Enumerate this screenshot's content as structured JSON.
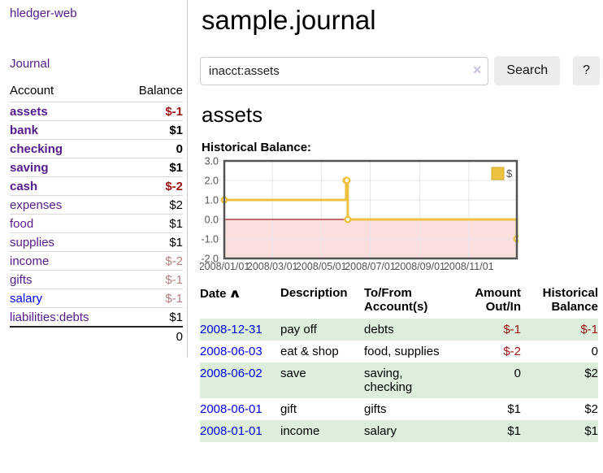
{
  "app": {
    "title": "hledger-web"
  },
  "sidebar": {
    "journal_link": "Journal",
    "accounts_table": {
      "header": {
        "account": "Account",
        "balance": "Balance"
      },
      "rows": [
        {
          "account": "assets",
          "balance": "$-1"
        },
        {
          "account": "bank",
          "balance": "$1"
        },
        {
          "account": "checking",
          "balance": "0"
        },
        {
          "account": "saving",
          "balance": "$1"
        },
        {
          "account": "cash",
          "balance": "$-2"
        },
        {
          "account": "expenses",
          "balance": "$2"
        },
        {
          "account": "food",
          "balance": "$1"
        },
        {
          "account": "supplies",
          "balance": "$1"
        },
        {
          "account": "income",
          "balance": "$-2"
        },
        {
          "account": "gifts",
          "balance": "$-1"
        },
        {
          "account": "salary",
          "balance": "$-1"
        },
        {
          "account": "liabilities:debts",
          "balance": "$1"
        }
      ],
      "total": "0"
    }
  },
  "main": {
    "page_title": "sample.journal",
    "search": {
      "value": "inacct:assets",
      "clear_icon": "×",
      "search_button": "Search",
      "help_button": "?"
    },
    "account_heading": "assets",
    "chart_heading": "Historical Balance:"
  },
  "chart_data": {
    "type": "line",
    "step": true,
    "title": "Historical Balance:",
    "series": [
      {
        "name": "$",
        "color": "#edc240",
        "points": [
          [
            "2008-01-01",
            1
          ],
          [
            "2008-06-01",
            2
          ],
          [
            "2008-06-02",
            2
          ],
          [
            "2008-06-03",
            0
          ],
          [
            "2008-12-31",
            -1
          ]
        ]
      }
    ],
    "ylim": [
      -2,
      3
    ],
    "yticks": [
      3,
      2,
      1,
      0,
      -1,
      -2
    ],
    "ytick_labels": [
      "3.0",
      "2.0",
      "1.0",
      "0.0",
      "-1.0",
      "-2.0"
    ],
    "xrange": [
      "2008-01-01",
      "2008-12-31"
    ],
    "xtick_dates": [
      "2008-01-01",
      "2008-03-01",
      "2008-05-01",
      "2008-07-01",
      "2008-09-01",
      "2008-11-01"
    ],
    "xtick_labels": [
      "2008/01/01",
      "2008/03/01",
      "2008/05/01",
      "2008/07/01",
      "2008/09/01",
      "2008/11/01"
    ],
    "legend": {
      "label": "$",
      "position": "top-right"
    },
    "grid": true,
    "below_zero_fill": "#fbdfdf",
    "zero_line_color": "#9e2020",
    "grid_color": "#e6e6e6",
    "border_color": "#545454",
    "tick_label_color": "#545454"
  },
  "register": {
    "headers": {
      "date": "Date",
      "sort_icon": "∧",
      "description": "Description",
      "tofrom": "To/From Account(s)",
      "amount": "Amount Out/In",
      "balance": "Historical Balance"
    },
    "rows": [
      {
        "date": "2008-12-31",
        "description": "pay off",
        "tofrom": "debts",
        "amount": "$-1",
        "balance": "$-1"
      },
      {
        "date": "2008-06-03",
        "description": "eat & shop",
        "tofrom": "food, supplies",
        "amount": "$-2",
        "balance": "0"
      },
      {
        "date": "2008-06-02",
        "description": "save",
        "tofrom": "saving, checking",
        "amount": "0",
        "balance": "$2"
      },
      {
        "date": "2008-06-01",
        "description": "gift",
        "tofrom": "gifts",
        "amount": "$1",
        "balance": "$2"
      },
      {
        "date": "2008-01-01",
        "description": "income",
        "tofrom": "salary",
        "amount": "$1",
        "balance": "$1"
      }
    ]
  },
  "colors": {
    "link_purple": "#551a8b",
    "link_blue": "#0000ee",
    "negative_strong": "#9d1414",
    "negative_soft": "#b97f7f",
    "row_stripe_green": "#ddeedd",
    "series_gold": "#edc240"
  }
}
